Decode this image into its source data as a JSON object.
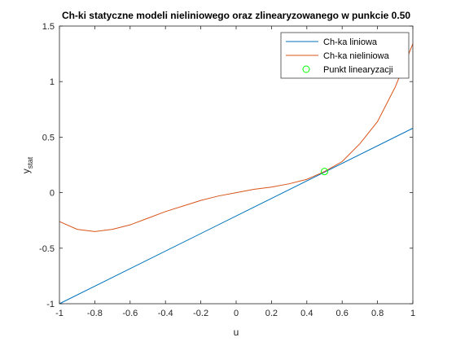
{
  "chart_data": {
    "type": "line",
    "title": "Ch-ki statyczne modeli nieliniowego oraz zlinearyzowanego w punkcie 0.50",
    "xlabel": "u",
    "ylabel": "y",
    "ylabel_sub": "stat",
    "xlim": [
      -1,
      1
    ],
    "ylim": [
      -1,
      1.5
    ],
    "x_ticks": [
      -1,
      -0.8,
      -0.6,
      -0.4,
      -0.2,
      0,
      0.2,
      0.4,
      0.6,
      0.8,
      1
    ],
    "x_tick_labels": [
      "-1",
      "-0.8",
      "-0.6",
      "-0.4",
      "-0.2",
      "0",
      "0.2",
      "0.4",
      "0.6",
      "0.8",
      "1"
    ],
    "y_ticks": [
      -1,
      -0.5,
      0,
      0.5,
      1,
      1.5
    ],
    "y_tick_labels": [
      "-1",
      "-0.5",
      "0",
      "0.5",
      "1",
      "1.5"
    ],
    "grid": false,
    "legend_position": "top-right",
    "series": [
      {
        "name": "Ch-ka liniowa",
        "color": "#0072BD",
        "style": "line",
        "x": [
          -1,
          1
        ],
        "y": [
          -1.0,
          0.58
        ]
      },
      {
        "name": "Ch-ka nieliniowa",
        "color": "#D95319",
        "style": "line",
        "x": [
          -1,
          -0.9,
          -0.8,
          -0.7,
          -0.6,
          -0.5,
          -0.4,
          -0.3,
          -0.2,
          -0.1,
          0,
          0.1,
          0.2,
          0.3,
          0.4,
          0.5,
          0.6,
          0.7,
          0.8,
          0.9,
          1
        ],
        "y": [
          -0.26,
          -0.33,
          -0.35,
          -0.33,
          -0.29,
          -0.23,
          -0.17,
          -0.12,
          -0.07,
          -0.03,
          0.0,
          0.03,
          0.05,
          0.08,
          0.12,
          0.19,
          0.28,
          0.44,
          0.64,
          0.95,
          1.34
        ]
      },
      {
        "name": "Punkt linearyzacji",
        "color": "#00FF00",
        "style": "marker",
        "marker": "circle",
        "x": [
          0.5
        ],
        "y": [
          0.19
        ]
      }
    ]
  }
}
